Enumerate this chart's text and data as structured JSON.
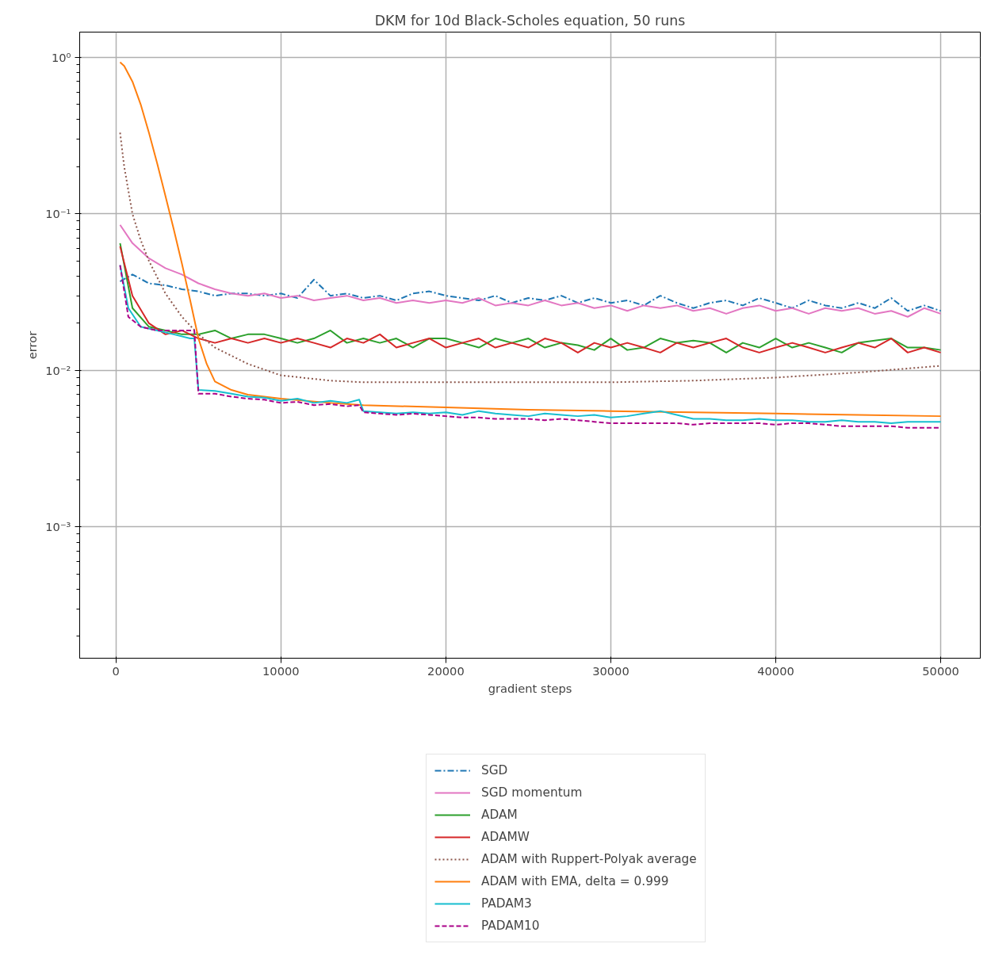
{
  "chart_data": {
    "type": "line",
    "title": "DKM for 10d Black-Scholes equation, 50 runs",
    "xlabel": "gradient steps",
    "ylabel": "error",
    "log": "y",
    "grid": true,
    "legend": "bottom",
    "xlim": [
      -2200,
      52400
    ],
    "ylim": [
      0.000145,
      1.45
    ],
    "xticks": [
      0,
      10000,
      20000,
      30000,
      40000,
      50000
    ],
    "yticks": [
      {
        "value": 0.001,
        "label": "10⁻³"
      },
      {
        "value": 0.01,
        "label": "10⁻²"
      },
      {
        "value": 0.1,
        "label": "10⁻¹"
      },
      {
        "value": 1,
        "label": "10⁰"
      }
    ],
    "x": [
      250,
      1000,
      2000,
      3000,
      4000,
      5000,
      6000,
      7000,
      8000,
      9000,
      10000,
      11000,
      12000,
      13000,
      14000,
      15000,
      16000,
      17000,
      18000,
      19000,
      20000,
      21000,
      22000,
      23000,
      24000,
      25000,
      26000,
      27000,
      28000,
      29000,
      30000,
      31000,
      32000,
      33000,
      34000,
      35000,
      36000,
      37000,
      38000,
      39000,
      40000,
      41000,
      42000,
      43000,
      44000,
      45000,
      46000,
      47000,
      48000,
      49000,
      50000
    ],
    "series": [
      {
        "name": "SGD",
        "color": "#1f77b4",
        "line_style": "dashdot",
        "values": [
          0.037,
          0.041,
          0.036,
          0.035,
          0.033,
          0.032,
          0.03,
          0.031,
          0.031,
          0.03,
          0.031,
          0.029,
          0.038,
          0.03,
          0.031,
          0.029,
          0.03,
          0.028,
          0.031,
          0.032,
          0.03,
          0.029,
          0.028,
          0.03,
          0.027,
          0.029,
          0.028,
          0.03,
          0.027,
          0.029,
          0.027,
          0.028,
          0.026,
          0.03,
          0.027,
          0.025,
          0.027,
          0.028,
          0.026,
          0.029,
          0.027,
          0.025,
          0.028,
          0.026,
          0.025,
          0.027,
          0.025,
          0.029,
          0.024,
          0.026,
          0.024
        ]
      },
      {
        "name": "SGD momentum",
        "color": "#e377c2",
        "line_style": "solid",
        "values": [
          0.085,
          0.065,
          0.052,
          0.045,
          0.041,
          0.036,
          0.033,
          0.031,
          0.03,
          0.031,
          0.029,
          0.03,
          0.028,
          0.029,
          0.03,
          0.028,
          0.029,
          0.027,
          0.028,
          0.027,
          0.028,
          0.027,
          0.029,
          0.026,
          0.027,
          0.026,
          0.028,
          0.026,
          0.027,
          0.025,
          0.026,
          0.024,
          0.026,
          0.025,
          0.026,
          0.024,
          0.025,
          0.023,
          0.025,
          0.026,
          0.024,
          0.025,
          0.023,
          0.025,
          0.024,
          0.025,
          0.023,
          0.024,
          0.022,
          0.025,
          0.023
        ]
      },
      {
        "name": "ADAM",
        "color": "#2ca02c",
        "line_style": "solid",
        "values": [
          0.065,
          0.025,
          0.019,
          0.018,
          0.017,
          0.017,
          0.018,
          0.016,
          0.017,
          0.017,
          0.016,
          0.015,
          0.016,
          0.018,
          0.015,
          0.016,
          0.015,
          0.016,
          0.014,
          0.016,
          0.016,
          0.015,
          0.014,
          0.016,
          0.015,
          0.016,
          0.014,
          0.015,
          0.0145,
          0.0135,
          0.016,
          0.0135,
          0.014,
          0.016,
          0.015,
          0.0155,
          0.015,
          0.013,
          0.015,
          0.014,
          0.016,
          0.014,
          0.015,
          0.014,
          0.013,
          0.015,
          0.0155,
          0.016,
          0.014,
          0.014,
          0.0135
        ]
      },
      {
        "name": "ADAMW",
        "color": "#d62728",
        "line_style": "solid",
        "values": [
          0.062,
          0.03,
          0.02,
          0.017,
          0.018,
          0.016,
          0.015,
          0.016,
          0.015,
          0.016,
          0.015,
          0.016,
          0.015,
          0.014,
          0.016,
          0.015,
          0.017,
          0.014,
          0.015,
          0.016,
          0.014,
          0.015,
          0.016,
          0.014,
          0.015,
          0.014,
          0.016,
          0.015,
          0.013,
          0.015,
          0.014,
          0.015,
          0.014,
          0.013,
          0.015,
          0.014,
          0.015,
          0.016,
          0.014,
          0.013,
          0.014,
          0.015,
          0.014,
          0.013,
          0.014,
          0.015,
          0.014,
          0.016,
          0.013,
          0.014,
          0.013
        ]
      },
      {
        "name": "ADAM with Ruppert-Polyak average",
        "color": "#8c564b",
        "line_style": "dotted",
        "x": [
          250,
          500,
          1000,
          1500,
          2000,
          3000,
          4000,
          5000,
          6000,
          8000,
          10000,
          13000,
          15000,
          20000,
          25000,
          30000,
          35000,
          40000,
          45000,
          50000
        ],
        "values": [
          0.33,
          0.2,
          0.1,
          0.068,
          0.05,
          0.031,
          0.022,
          0.017,
          0.014,
          0.011,
          0.0093,
          0.0086,
          0.0084,
          0.0084,
          0.0084,
          0.0084,
          0.0086,
          0.009,
          0.0097,
          0.0107
        ]
      },
      {
        "name": "ADAM with EMA, delta = 0.999",
        "color": "#ff7f0e",
        "line_style": "solid",
        "x": [
          250,
          500,
          1000,
          1500,
          2000,
          2500,
          3000,
          3500,
          4000,
          4500,
          5000,
          5500,
          6000,
          7000,
          8000,
          10000,
          13000,
          15000,
          20000,
          25000,
          30000,
          35000,
          40000,
          45000,
          50000
        ],
        "values": [
          0.93,
          0.88,
          0.7,
          0.5,
          0.33,
          0.21,
          0.13,
          0.08,
          0.048,
          0.028,
          0.016,
          0.011,
          0.0085,
          0.0075,
          0.007,
          0.0066,
          0.0062,
          0.006,
          0.0058,
          0.0056,
          0.0055,
          0.0054,
          0.0053,
          0.0052,
          0.0051
        ]
      },
      {
        "name": "PADAM3",
        "color": "#17becf",
        "line_style": "solid",
        "x": [
          250,
          750,
          1500,
          2500,
          3500,
          4500,
          4750,
          5000,
          6000,
          7000,
          8000,
          9000,
          10000,
          11000,
          12000,
          13000,
          14000,
          14750,
          15000,
          16000,
          17000,
          18000,
          19000,
          20000,
          21000,
          22000,
          23000,
          24000,
          25000,
          26000,
          27000,
          28000,
          29000,
          30000,
          31000,
          32000,
          33000,
          34000,
          35000,
          36000,
          37000,
          38000,
          39000,
          40000,
          41000,
          42000,
          43000,
          44000,
          45000,
          46000,
          47000,
          48000,
          49000,
          50000
        ],
        "values": [
          0.047,
          0.025,
          0.019,
          0.018,
          0.017,
          0.016,
          0.016,
          0.0075,
          0.0074,
          0.0071,
          0.0068,
          0.0067,
          0.0064,
          0.0066,
          0.0062,
          0.0064,
          0.0062,
          0.0065,
          0.0055,
          0.0054,
          0.0053,
          0.0054,
          0.0053,
          0.0054,
          0.0052,
          0.0055,
          0.0053,
          0.0052,
          0.0051,
          0.0053,
          0.0052,
          0.0051,
          0.0052,
          0.005,
          0.0051,
          0.0053,
          0.0055,
          0.0052,
          0.0049,
          0.0049,
          0.0048,
          0.0048,
          0.0049,
          0.0048,
          0.0048,
          0.0047,
          0.0047,
          0.0048,
          0.0047,
          0.0047,
          0.0046,
          0.0047,
          0.0047,
          0.0047
        ]
      },
      {
        "name": "PADAM10",
        "color": "#aa0088",
        "line_style": "dashed",
        "x": [
          250,
          750,
          1500,
          2500,
          3500,
          4500,
          4750,
          5000,
          6000,
          7000,
          8000,
          9000,
          10000,
          11000,
          12000,
          13000,
          14000,
          14750,
          15000,
          16000,
          17000,
          18000,
          19000,
          20000,
          21000,
          22000,
          23000,
          24000,
          25000,
          26000,
          27000,
          28000,
          29000,
          30000,
          31000,
          32000,
          33000,
          34000,
          35000,
          36000,
          37000,
          38000,
          39000,
          40000,
          41000,
          42000,
          43000,
          44000,
          45000,
          46000,
          47000,
          48000,
          49000,
          50000
        ],
        "values": [
          0.047,
          0.022,
          0.019,
          0.018,
          0.018,
          0.018,
          0.018,
          0.0071,
          0.0071,
          0.0068,
          0.0066,
          0.0065,
          0.0062,
          0.0063,
          0.006,
          0.0061,
          0.0059,
          0.006,
          0.0054,
          0.0053,
          0.0052,
          0.0053,
          0.0052,
          0.0051,
          0.005,
          0.005,
          0.0049,
          0.0049,
          0.0049,
          0.0048,
          0.0049,
          0.0048,
          0.0047,
          0.0046,
          0.0046,
          0.0046,
          0.0046,
          0.0046,
          0.0045,
          0.0046,
          0.0046,
          0.0046,
          0.0046,
          0.0045,
          0.0046,
          0.0046,
          0.0045,
          0.0044,
          0.0044,
          0.0044,
          0.0044,
          0.0043,
          0.0043,
          0.0043
        ]
      }
    ]
  }
}
